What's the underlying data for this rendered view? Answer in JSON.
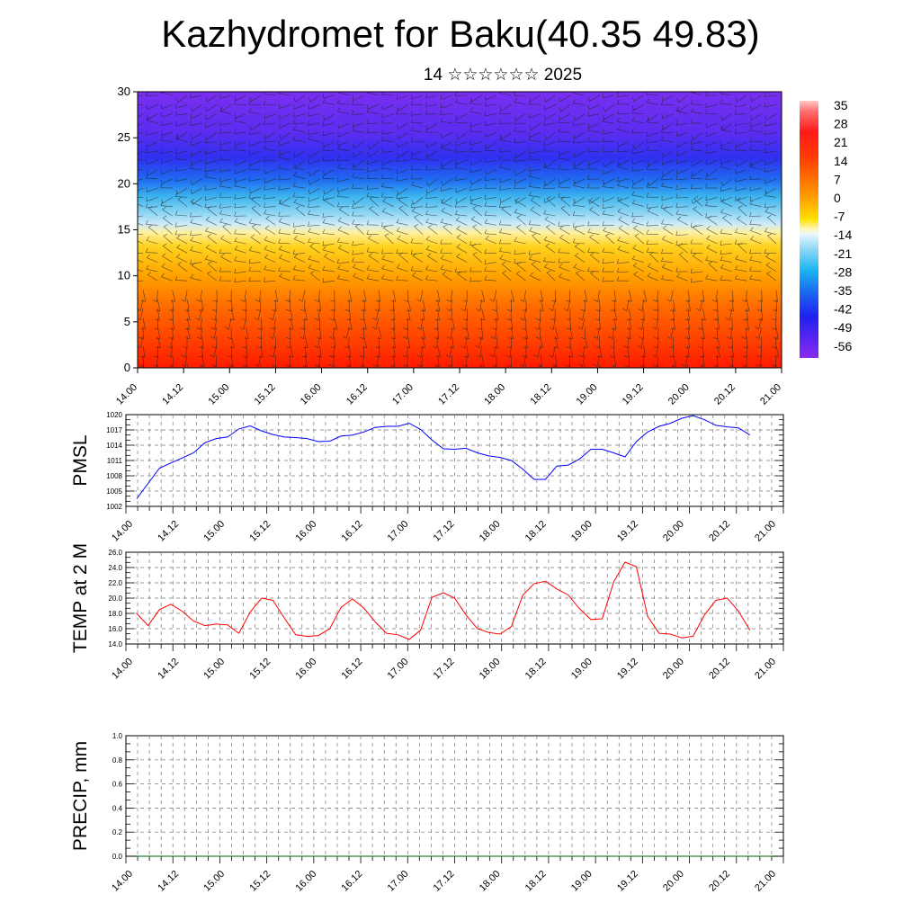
{
  "header": {
    "title": "Kazhydromet for Baku(40.35 49.83)",
    "subtitle": "14 ☆☆☆☆☆☆ 2025"
  },
  "colors": {
    "pmsl_line": "#0000ff",
    "temp_line": "#ff0000",
    "precip_line": "#006600"
  },
  "chart_data": [
    {
      "type": "heatmap",
      "title": "",
      "xlabel": "",
      "ylabel": "",
      "x_tick_labels": [
        "14.00",
        "14.12",
        "15.00",
        "15.12",
        "16.00",
        "16.12",
        "17.00",
        "17.12",
        "18.00",
        "18.12",
        "19.00",
        "19.12",
        "20.00",
        "20.12",
        "21.00"
      ],
      "y_ticks": [
        0,
        5,
        10,
        15,
        20,
        25,
        30
      ],
      "ylim": [
        0,
        30
      ],
      "colorbar": {
        "labels": [
          "35",
          "28",
          "21",
          "14",
          "7",
          "0",
          "-7",
          "-14",
          "-21",
          "-28",
          "-35",
          "-42",
          "-49",
          "-56"
        ],
        "range": [
          -60,
          38
        ]
      },
      "overlay": "wind barbs"
    },
    {
      "type": "line",
      "ylabel": "PMSL",
      "x_tick_labels": [
        "14.00",
        "14.12",
        "15.00",
        "15.12",
        "16.00",
        "16.12",
        "17.00",
        "17.12",
        "18.00",
        "18.12",
        "19.00",
        "19.12",
        "20.00",
        "20.12",
        "21.00"
      ],
      "y_tick_labels": [
        "1002",
        "1005",
        "1008",
        "1011",
        "1014",
        "1017",
        "1020"
      ],
      "ylim": [
        1002,
        1020
      ],
      "xlim_hours": [
        0,
        168
      ],
      "series": [
        {
          "x": [
            0,
            6,
            9,
            12,
            15,
            18,
            21,
            24,
            27,
            30,
            33,
            36,
            39,
            42,
            45,
            48,
            51,
            54,
            57,
            60,
            63,
            66,
            69,
            72,
            75,
            78,
            81,
            84,
            87,
            90,
            93,
            96,
            99,
            102,
            105,
            108,
            111,
            114,
            117,
            120,
            123,
            126,
            129,
            132,
            135,
            138,
            141,
            144,
            147,
            150,
            153,
            156,
            159,
            162
          ],
          "y": [
            1003.5,
            1009.5,
            1010.5,
            1011.5,
            1012.5,
            1014.5,
            1015.3,
            1015.6,
            1017.2,
            1017.8,
            1016.8,
            1016.1,
            1015.6,
            1015.5,
            1015.3,
            1014.7,
            1014.8,
            1015.8,
            1016.0,
            1016.6,
            1017.5,
            1017.7,
            1017.7,
            1018.3,
            1017.1,
            1015.0,
            1013.3,
            1013.2,
            1013.4,
            1012.5,
            1011.9,
            1011.6,
            1011.0,
            1009.3,
            1007.3,
            1007.3,
            1009.9,
            1010.1,
            1011.3,
            1013.2,
            1013.2,
            1012.5,
            1011.7,
            1014.7,
            1016.6,
            1017.7,
            1018.3,
            1019.3,
            1019.8,
            1019.0,
            1017.9,
            1017.6,
            1017.4,
            1016.0
          ]
        }
      ]
    },
    {
      "type": "line",
      "ylabel": "TEMP at 2 M",
      "x_tick_labels": [
        "14.00",
        "14.12",
        "15.00",
        "15.12",
        "16.00",
        "16.12",
        "17.00",
        "17.12",
        "18.00",
        "18.12",
        "19.00",
        "19.12",
        "20.00",
        "20.12",
        "21.00"
      ],
      "y_tick_labels": [
        "14.0",
        "16.0",
        "18.0",
        "20.0",
        "22.0",
        "24.0",
        "26.0"
      ],
      "ylim": [
        14,
        26
      ],
      "xlim_hours": [
        0,
        168
      ],
      "series": [
        {
          "x": [
            0,
            3,
            6,
            9,
            12,
            15,
            18,
            21,
            24,
            27,
            30,
            33,
            36,
            39,
            42,
            45,
            48,
            51,
            54,
            57,
            60,
            63,
            66,
            69,
            72,
            75,
            78,
            81,
            84,
            87,
            90,
            93,
            96,
            99,
            102,
            105,
            108,
            111,
            114,
            117,
            120,
            123,
            126,
            129,
            132,
            135,
            138,
            141,
            144,
            147,
            150,
            153,
            156,
            159,
            162
          ],
          "y": [
            18.0,
            16.4,
            18.5,
            19.2,
            18.3,
            17.0,
            16.4,
            16.6,
            16.5,
            15.4,
            18.2,
            20.0,
            19.7,
            17.4,
            15.2,
            15.0,
            15.1,
            16.0,
            18.8,
            19.9,
            18.7,
            16.9,
            15.4,
            15.2,
            14.6,
            15.8,
            20.1,
            20.7,
            20.0,
            17.8,
            16.0,
            15.5,
            15.3,
            16.3,
            20.4,
            21.9,
            22.2,
            21.2,
            20.4,
            18.6,
            17.2,
            17.3,
            22.1,
            24.7,
            24.1,
            17.6,
            15.4,
            15.3,
            14.8,
            15.0,
            17.8,
            19.7,
            20.0,
            18.3,
            15.8
          ]
        }
      ]
    },
    {
      "type": "line",
      "ylabel": "PRECIP, mm",
      "x_tick_labels": [
        "14.00",
        "14.12",
        "15.00",
        "15.12",
        "16.00",
        "16.12",
        "17.00",
        "17.12",
        "18.00",
        "18.12",
        "19.00",
        "19.12",
        "20.00",
        "20.12",
        "21.00"
      ],
      "y_tick_labels": [
        "0.0",
        "0.2",
        "0.4",
        "0.6",
        "0.8",
        "1.0"
      ],
      "ylim": [
        0,
        1
      ],
      "xlim_hours": [
        0,
        168
      ],
      "series": [
        {
          "x": [
            0,
            168
          ],
          "y": [
            0,
            0
          ]
        }
      ]
    }
  ]
}
